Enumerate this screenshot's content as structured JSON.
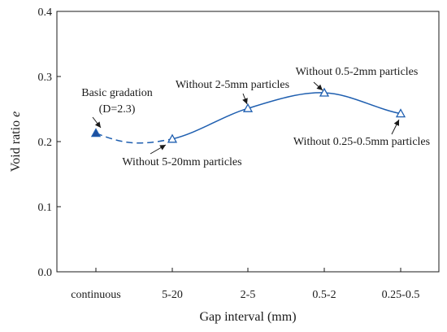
{
  "chart_data": {
    "type": "line",
    "xlabel": "Gap interval (mm)",
    "ylabel_main": "Void ratio ",
    "ylabel_italic": "e",
    "categories": [
      "continuous",
      "5-20",
      "2-5",
      "0.5-2",
      "0.25-0.5"
    ],
    "ylim": [
      0.0,
      0.4
    ],
    "yticks": [
      0.0,
      0.1,
      0.2,
      0.3,
      0.4
    ],
    "ytick_labels": [
      "0.0",
      "0.1",
      "0.2",
      "0.3",
      "0.4"
    ],
    "series": [
      {
        "values": [
          0.213,
          0.204,
          0.251,
          0.275,
          0.243
        ],
        "markers": [
          "filled-triangle",
          "open-triangle",
          "open-triangle",
          "open-triangle",
          "open-triangle"
        ],
        "color": "#1f5fb0"
      }
    ],
    "annotations": [
      {
        "lines": [
          "Basic gradation",
          "(D=2.3)"
        ],
        "category": "continuous"
      },
      {
        "lines": [
          "Without 5-20mm particles"
        ],
        "category": "5-20"
      },
      {
        "lines": [
          "Without 2-5mm particles"
        ],
        "category": "2-5"
      },
      {
        "lines": [
          "Without 0.5-2mm particles"
        ],
        "category": "0.5-2"
      },
      {
        "lines": [
          "Without 0.25-0.5mm particles"
        ],
        "category": "0.25-0.5"
      }
    ],
    "line_style": "dashed between continuous and 5-20, solid smooth curve after",
    "grid": false,
    "legend": "none"
  }
}
